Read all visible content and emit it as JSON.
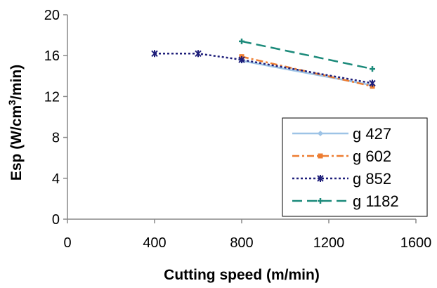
{
  "chart_data": {
    "type": "line",
    "xlabel": "Cutting speed (m/min)",
    "ylabel_prefix": "Esp (W/cm",
    "ylabel_sup": "3",
    "ylabel_suffix": "/min)",
    "xlim": [
      0,
      1600
    ],
    "ylim": [
      0,
      20
    ],
    "xticks": [
      "0",
      "400",
      "800",
      "1200",
      "1600"
    ],
    "yticks": [
      "0",
      "4",
      "8",
      "12",
      "16",
      "20"
    ],
    "grid": false,
    "legend_position": "bottom-right",
    "series": [
      {
        "name": "g 427",
        "color": "#9DC3E6",
        "dash": "solid",
        "marker": "diamond",
        "x": [
          800,
          1400
        ],
        "y": [
          15.5,
          13.1
        ]
      },
      {
        "name": "g 602",
        "color": "#ED7D31",
        "dash": "dashdot",
        "marker": "square",
        "x": [
          800,
          1400
        ],
        "y": [
          15.9,
          13.0
        ]
      },
      {
        "name": "g 852",
        "color": "#1F1F7A",
        "dash": "dot",
        "marker": "star",
        "x": [
          400,
          600,
          800,
          1400
        ],
        "y": [
          16.2,
          16.2,
          15.6,
          13.3
        ]
      },
      {
        "name": "g 1182",
        "color": "#1B8A7A",
        "dash": "dash",
        "marker": "plus",
        "x": [
          800,
          1400
        ],
        "y": [
          17.4,
          14.7
        ]
      }
    ]
  }
}
